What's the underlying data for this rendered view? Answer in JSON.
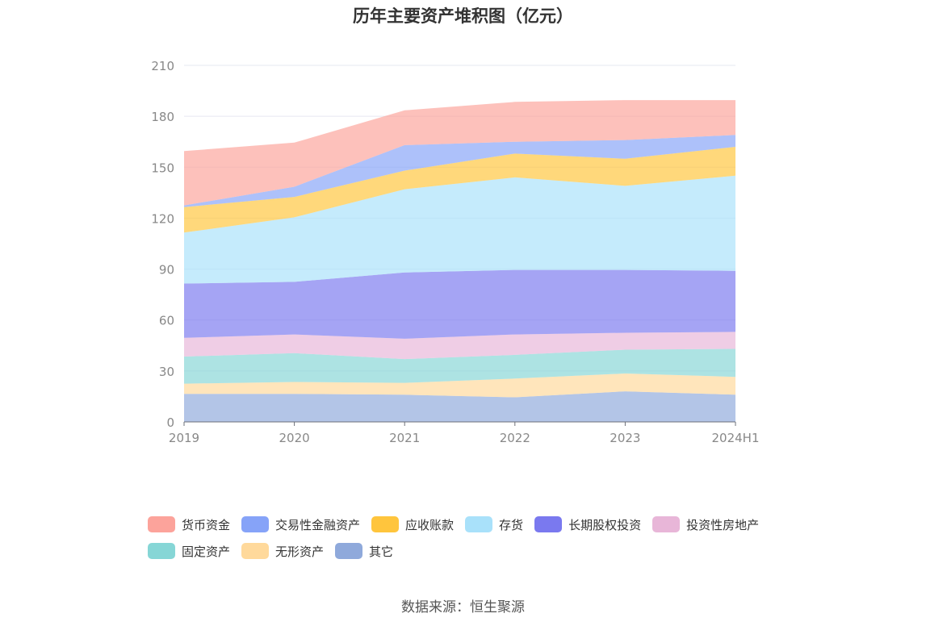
{
  "chart_data": {
    "type": "area",
    "stacked": true,
    "title": "历年主要资产堆积图（亿元）",
    "categories": [
      "2019",
      "2020",
      "2021",
      "2022",
      "2023",
      "2024H1"
    ],
    "y_ticks": [
      0,
      30,
      60,
      90,
      120,
      150,
      180,
      210
    ],
    "ylim": [
      0,
      210
    ],
    "grid": true,
    "legend_position": "bottom",
    "series": [
      {
        "name": "其它",
        "color": "#8fa9db",
        "values": [
          16.5,
          16.5,
          16,
          14.5,
          18,
          16
        ]
      },
      {
        "name": "无形资产",
        "color": "#ffd99b",
        "values": [
          6,
          7,
          7,
          11,
          10.5,
          10.5
        ]
      },
      {
        "name": "固定资产",
        "color": "#86d6d6",
        "values": [
          16,
          17,
          14,
          14,
          14,
          16.5
        ]
      },
      {
        "name": "投资性房地产",
        "color": "#e8b6d8",
        "values": [
          11,
          11,
          12,
          12,
          10,
          10
        ]
      },
      {
        "name": "长期股权投资",
        "color": "#7a79ef",
        "values": [
          32,
          31,
          39,
          38,
          37,
          36
        ]
      },
      {
        "name": "存货",
        "color": "#a9e1fa",
        "values": [
          30,
          38,
          49,
          54.5,
          49.5,
          56
        ]
      },
      {
        "name": "应收账款",
        "color": "#ffc53d",
        "values": [
          15,
          12,
          11,
          14,
          16,
          17
        ]
      },
      {
        "name": "交易性金融资产",
        "color": "#86a3f8",
        "values": [
          1,
          6,
          15,
          7,
          11,
          7
        ]
      },
      {
        "name": "货币资金",
        "color": "#fca39b",
        "values": [
          32,
          26,
          20.5,
          23.5,
          23.5,
          20.5
        ]
      }
    ],
    "legend_order": [
      "货币资金",
      "交易性金融资产",
      "应收账款",
      "存货",
      "长期股权投资",
      "投资性房地产",
      "固定资产",
      "无形资产",
      "其它"
    ]
  },
  "source": "数据来源：恒生聚源"
}
